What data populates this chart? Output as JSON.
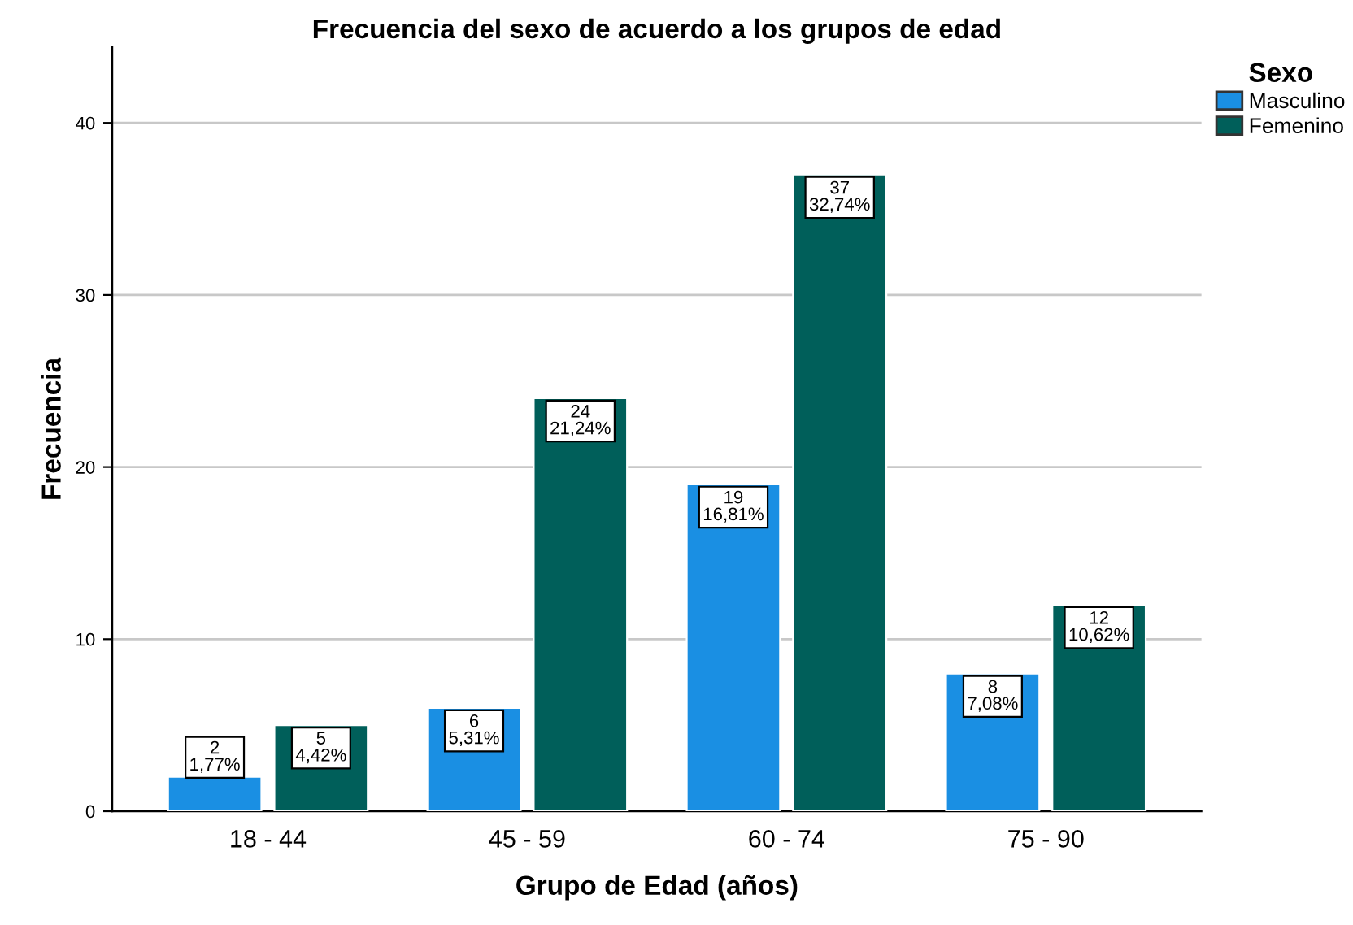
{
  "chart_data": {
    "type": "bar",
    "title": "Frecuencia del sexo de acuerdo a los grupos de edad",
    "xlabel": "Grupo de Edad (años)",
    "ylabel": "Frecuencia",
    "legend_title": "Sexo",
    "categories": [
      "18 - 44",
      "45 - 59",
      "60 - 74",
      "75 - 90"
    ],
    "series": [
      {
        "name": "Masculino",
        "color": "#1a8fe3",
        "values": [
          2,
          6,
          19,
          8
        ],
        "value_labels": [
          "2\n1,77%",
          "6\n5,31%",
          "19\n16,81%",
          "8\n7,08%"
        ]
      },
      {
        "name": "Femenino",
        "color": "#005f5a",
        "values": [
          5,
          24,
          37,
          12
        ],
        "value_labels": [
          "5\n4,42%",
          "24\n21,24%",
          "37\n32,74%",
          "12\n10,62%"
        ]
      }
    ],
    "ylim": [
      0,
      44.4
    ],
    "yticks": [
      0,
      10,
      20,
      30,
      40
    ],
    "grid": "y",
    "legend": "top right"
  }
}
